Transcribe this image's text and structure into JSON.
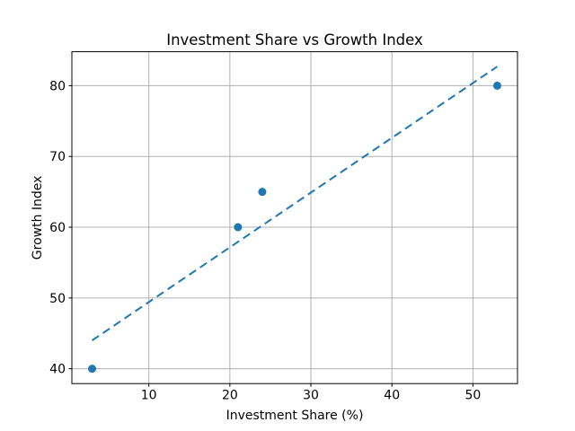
{
  "chart_data": {
    "type": "scatter",
    "title": "Investment Share vs Growth Index",
    "xlabel": "Investment Share (%)",
    "ylabel": "Growth Index",
    "points": [
      {
        "x": 3,
        "y": 40
      },
      {
        "x": 21,
        "y": 60
      },
      {
        "x": 24,
        "y": 65
      },
      {
        "x": 53,
        "y": 80
      }
    ],
    "trendline": {
      "style": "dashed",
      "x1": 3,
      "y1": 44.0,
      "x2": 53,
      "y2": 82.7
    },
    "x_ticks": [
      10,
      20,
      30,
      40,
      50
    ],
    "y_ticks": [
      40,
      50,
      60,
      70,
      80
    ],
    "xlim": [
      0.5,
      55.5
    ],
    "ylim": [
      37.9,
      84.8
    ],
    "grid": true,
    "legend_position": null,
    "colors": {
      "marker": "#1f77b4",
      "trendline": "#1f77b4",
      "grid": "#b0b0b0",
      "axes": "#000000",
      "background": "#ffffff",
      "text": "#000000"
    }
  }
}
